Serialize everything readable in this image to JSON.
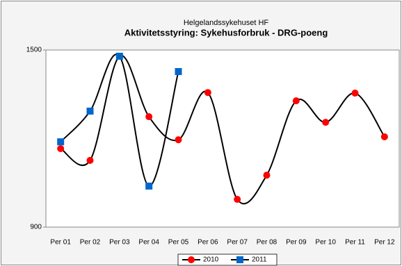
{
  "chart_data": {
    "type": "line",
    "subtitle": "Helgelandssykehuset HF",
    "title": "Aktivitetsstyring: Sykehusforbruk - DRG-poeng",
    "categories": [
      "Per 01",
      "Per 02",
      "Per 03",
      "Per 04",
      "Per 05",
      "Per 06",
      "Per 07",
      "Per 08",
      "Per 09",
      "Per 10",
      "Per 11",
      "Per 12"
    ],
    "series": [
      {
        "name": "2010",
        "color": "#ff0000",
        "marker": "circle",
        "values": [
          1166,
          1126,
          1479,
          1274,
          1196,
          1356,
          994,
          1076,
          1328,
          1255,
          1354,
          1206
        ]
      },
      {
        "name": "2011",
        "color": "#0066cc",
        "marker": "square",
        "values": [
          1189,
          1293,
          1479,
          1039,
          1427,
          null,
          null,
          null,
          null,
          null,
          null,
          null
        ]
      }
    ],
    "ylim": [
      900,
      1500
    ],
    "yticks": [
      900,
      1500
    ],
    "smooth": true,
    "legend": "bottom"
  }
}
